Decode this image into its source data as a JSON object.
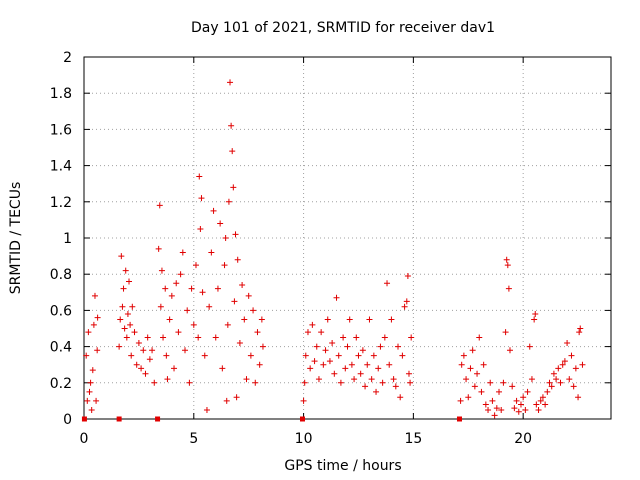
{
  "chart_data": {
    "type": "scatter",
    "title": "Day 101 of 2021, SRMTID for receiver dav1",
    "xlabel": "GPS time / hours",
    "ylabel": "SRMTID / TECUs",
    "xlim": [
      0,
      24
    ],
    "ylim": [
      0,
      2
    ],
    "grid": true,
    "marker_color": "#e00000",
    "x_ticks": [
      "0",
      "5",
      "10",
      "15",
      "20"
    ],
    "y_ticks": [
      "0",
      "0.2",
      "0.4",
      "0.6",
      "0.8",
      "1",
      "1.2",
      "1.4",
      "1.6",
      "1.8",
      "2"
    ],
    "series": [
      {
        "name": "dav1",
        "points": [
          [
            0.02,
            0.0
          ],
          [
            0.1,
            0.35
          ],
          [
            0.15,
            0.1
          ],
          [
            0.2,
            0.48
          ],
          [
            0.25,
            0.15
          ],
          [
            0.3,
            0.2
          ],
          [
            0.35,
            0.05
          ],
          [
            0.4,
            0.27
          ],
          [
            0.45,
            0.52
          ],
          [
            0.5,
            0.68
          ],
          [
            0.55,
            0.1
          ],
          [
            0.6,
            0.38
          ],
          [
            0.62,
            0.56
          ],
          [
            1.6,
            0.0
          ],
          [
            1.6,
            0.4
          ],
          [
            1.65,
            0.55
          ],
          [
            1.7,
            0.9
          ],
          [
            1.75,
            0.62
          ],
          [
            1.8,
            0.72
          ],
          [
            1.85,
            0.5
          ],
          [
            1.9,
            0.82
          ],
          [
            1.95,
            0.45
          ],
          [
            2.0,
            0.58
          ],
          [
            2.05,
            0.76
          ],
          [
            2.1,
            0.52
          ],
          [
            2.15,
            0.35
          ],
          [
            2.2,
            0.62
          ],
          [
            2.3,
            0.48
          ],
          [
            2.4,
            0.3
          ],
          [
            2.5,
            0.42
          ],
          [
            2.6,
            0.28
          ],
          [
            2.7,
            0.38
          ],
          [
            2.8,
            0.25
          ],
          [
            2.9,
            0.45
          ],
          [
            3.0,
            0.33
          ],
          [
            3.1,
            0.38
          ],
          [
            3.2,
            0.2
          ],
          [
            3.35,
            0.0
          ],
          [
            3.4,
            0.94
          ],
          [
            3.45,
            1.18
          ],
          [
            3.5,
            0.62
          ],
          [
            3.55,
            0.82
          ],
          [
            3.6,
            0.45
          ],
          [
            3.7,
            0.72
          ],
          [
            3.75,
            0.35
          ],
          [
            3.8,
            0.22
          ],
          [
            3.9,
            0.55
          ],
          [
            4.0,
            0.68
          ],
          [
            4.1,
            0.28
          ],
          [
            4.2,
            0.75
          ],
          [
            4.3,
            0.48
          ],
          [
            4.4,
            0.8
          ],
          [
            4.5,
            0.92
          ],
          [
            4.6,
            0.38
          ],
          [
            4.7,
            0.6
          ],
          [
            4.8,
            0.2
          ],
          [
            4.9,
            0.72
          ],
          [
            5.0,
            0.52
          ],
          [
            5.1,
            0.85
          ],
          [
            5.2,
            0.45
          ],
          [
            5.25,
            1.34
          ],
          [
            5.3,
            1.05
          ],
          [
            5.35,
            1.22
          ],
          [
            5.4,
            0.7
          ],
          [
            5.5,
            0.35
          ],
          [
            5.6,
            0.05
          ],
          [
            5.7,
            0.62
          ],
          [
            5.8,
            0.92
          ],
          [
            5.9,
            1.15
          ],
          [
            6.0,
            0.45
          ],
          [
            6.1,
            0.72
          ],
          [
            6.2,
            1.08
          ],
          [
            6.3,
            0.28
          ],
          [
            6.4,
            0.85
          ],
          [
            6.45,
            1.0
          ],
          [
            6.5,
            0.1
          ],
          [
            6.55,
            0.52
          ],
          [
            6.6,
            1.2
          ],
          [
            6.65,
            1.86
          ],
          [
            6.7,
            1.62
          ],
          [
            6.75,
            1.48
          ],
          [
            6.8,
            1.28
          ],
          [
            6.85,
            0.65
          ],
          [
            6.9,
            1.02
          ],
          [
            6.95,
            0.12
          ],
          [
            7.0,
            0.88
          ],
          [
            7.1,
            0.42
          ],
          [
            7.2,
            0.74
          ],
          [
            7.3,
            0.55
          ],
          [
            7.4,
            0.22
          ],
          [
            7.5,
            0.68
          ],
          [
            7.6,
            0.35
          ],
          [
            7.7,
            0.6
          ],
          [
            7.8,
            0.2
          ],
          [
            7.9,
            0.48
          ],
          [
            8.0,
            0.3
          ],
          [
            8.1,
            0.55
          ],
          [
            8.15,
            0.4
          ],
          [
            9.95,
            0.0
          ],
          [
            10.0,
            0.1
          ],
          [
            10.05,
            0.2
          ],
          [
            10.1,
            0.35
          ],
          [
            10.2,
            0.48
          ],
          [
            10.3,
            0.28
          ],
          [
            10.4,
            0.52
          ],
          [
            10.5,
            0.32
          ],
          [
            10.6,
            0.4
          ],
          [
            10.7,
            0.22
          ],
          [
            10.8,
            0.48
          ],
          [
            10.9,
            0.3
          ],
          [
            11.0,
            0.38
          ],
          [
            11.1,
            0.55
          ],
          [
            11.2,
            0.32
          ],
          [
            11.3,
            0.42
          ],
          [
            11.4,
            0.25
          ],
          [
            11.5,
            0.67
          ],
          [
            11.6,
            0.35
          ],
          [
            11.7,
            0.2
          ],
          [
            11.8,
            0.45
          ],
          [
            11.9,
            0.28
          ],
          [
            12.0,
            0.4
          ],
          [
            12.1,
            0.55
          ],
          [
            12.2,
            0.3
          ],
          [
            12.3,
            0.22
          ],
          [
            12.4,
            0.45
          ],
          [
            12.5,
            0.35
          ],
          [
            12.6,
            0.25
          ],
          [
            12.7,
            0.38
          ],
          [
            12.8,
            0.18
          ],
          [
            12.9,
            0.3
          ],
          [
            13.0,
            0.55
          ],
          [
            13.1,
            0.22
          ],
          [
            13.2,
            0.35
          ],
          [
            13.3,
            0.15
          ],
          [
            13.4,
            0.28
          ],
          [
            13.5,
            0.4
          ],
          [
            13.6,
            0.2
          ],
          [
            13.7,
            0.45
          ],
          [
            13.8,
            0.75
          ],
          [
            13.9,
            0.3
          ],
          [
            14.0,
            0.55
          ],
          [
            14.1,
            0.22
          ],
          [
            14.2,
            0.18
          ],
          [
            14.3,
            0.4
          ],
          [
            14.4,
            0.12
          ],
          [
            14.5,
            0.35
          ],
          [
            14.6,
            0.62
          ],
          [
            14.7,
            0.65
          ],
          [
            14.75,
            0.79
          ],
          [
            14.8,
            0.25
          ],
          [
            14.85,
            0.2
          ],
          [
            14.9,
            0.45
          ],
          [
            17.1,
            0.0
          ],
          [
            17.15,
            0.1
          ],
          [
            17.2,
            0.3
          ],
          [
            17.3,
            0.35
          ],
          [
            17.4,
            0.22
          ],
          [
            17.5,
            0.12
          ],
          [
            17.6,
            0.28
          ],
          [
            17.7,
            0.38
          ],
          [
            17.8,
            0.18
          ],
          [
            17.9,
            0.25
          ],
          [
            18.0,
            0.45
          ],
          [
            18.1,
            0.15
          ],
          [
            18.2,
            0.3
          ],
          [
            18.3,
            0.08
          ],
          [
            18.4,
            0.05
          ],
          [
            18.5,
            0.2
          ],
          [
            18.6,
            0.1
          ],
          [
            18.7,
            0.02
          ],
          [
            18.8,
            0.06
          ],
          [
            18.9,
            0.15
          ],
          [
            19.0,
            0.05
          ],
          [
            19.1,
            0.2
          ],
          [
            19.2,
            0.48
          ],
          [
            19.25,
            0.88
          ],
          [
            19.3,
            0.85
          ],
          [
            19.35,
            0.72
          ],
          [
            19.4,
            0.38
          ],
          [
            19.5,
            0.18
          ],
          [
            19.6,
            0.06
          ],
          [
            19.7,
            0.1
          ],
          [
            19.8,
            0.04
          ],
          [
            19.9,
            0.08
          ],
          [
            20.0,
            0.12
          ],
          [
            20.1,
            0.05
          ],
          [
            20.2,
            0.15
          ],
          [
            20.3,
            0.4
          ],
          [
            20.4,
            0.22
          ],
          [
            20.5,
            0.55
          ],
          [
            20.55,
            0.58
          ],
          [
            20.6,
            0.08
          ],
          [
            20.7,
            0.05
          ],
          [
            20.8,
            0.1
          ],
          [
            20.9,
            0.12
          ],
          [
            21.0,
            0.08
          ],
          [
            21.1,
            0.15
          ],
          [
            21.2,
            0.2
          ],
          [
            21.3,
            0.18
          ],
          [
            21.4,
            0.25
          ],
          [
            21.5,
            0.22
          ],
          [
            21.6,
            0.28
          ],
          [
            21.7,
            0.2
          ],
          [
            21.8,
            0.3
          ],
          [
            21.9,
            0.32
          ],
          [
            22.0,
            0.42
          ],
          [
            22.1,
            0.22
          ],
          [
            22.2,
            0.35
          ],
          [
            22.3,
            0.18
          ],
          [
            22.4,
            0.28
          ],
          [
            22.5,
            0.12
          ],
          [
            22.55,
            0.48
          ],
          [
            22.6,
            0.5
          ],
          [
            22.7,
            0.3
          ]
        ]
      }
    ]
  }
}
